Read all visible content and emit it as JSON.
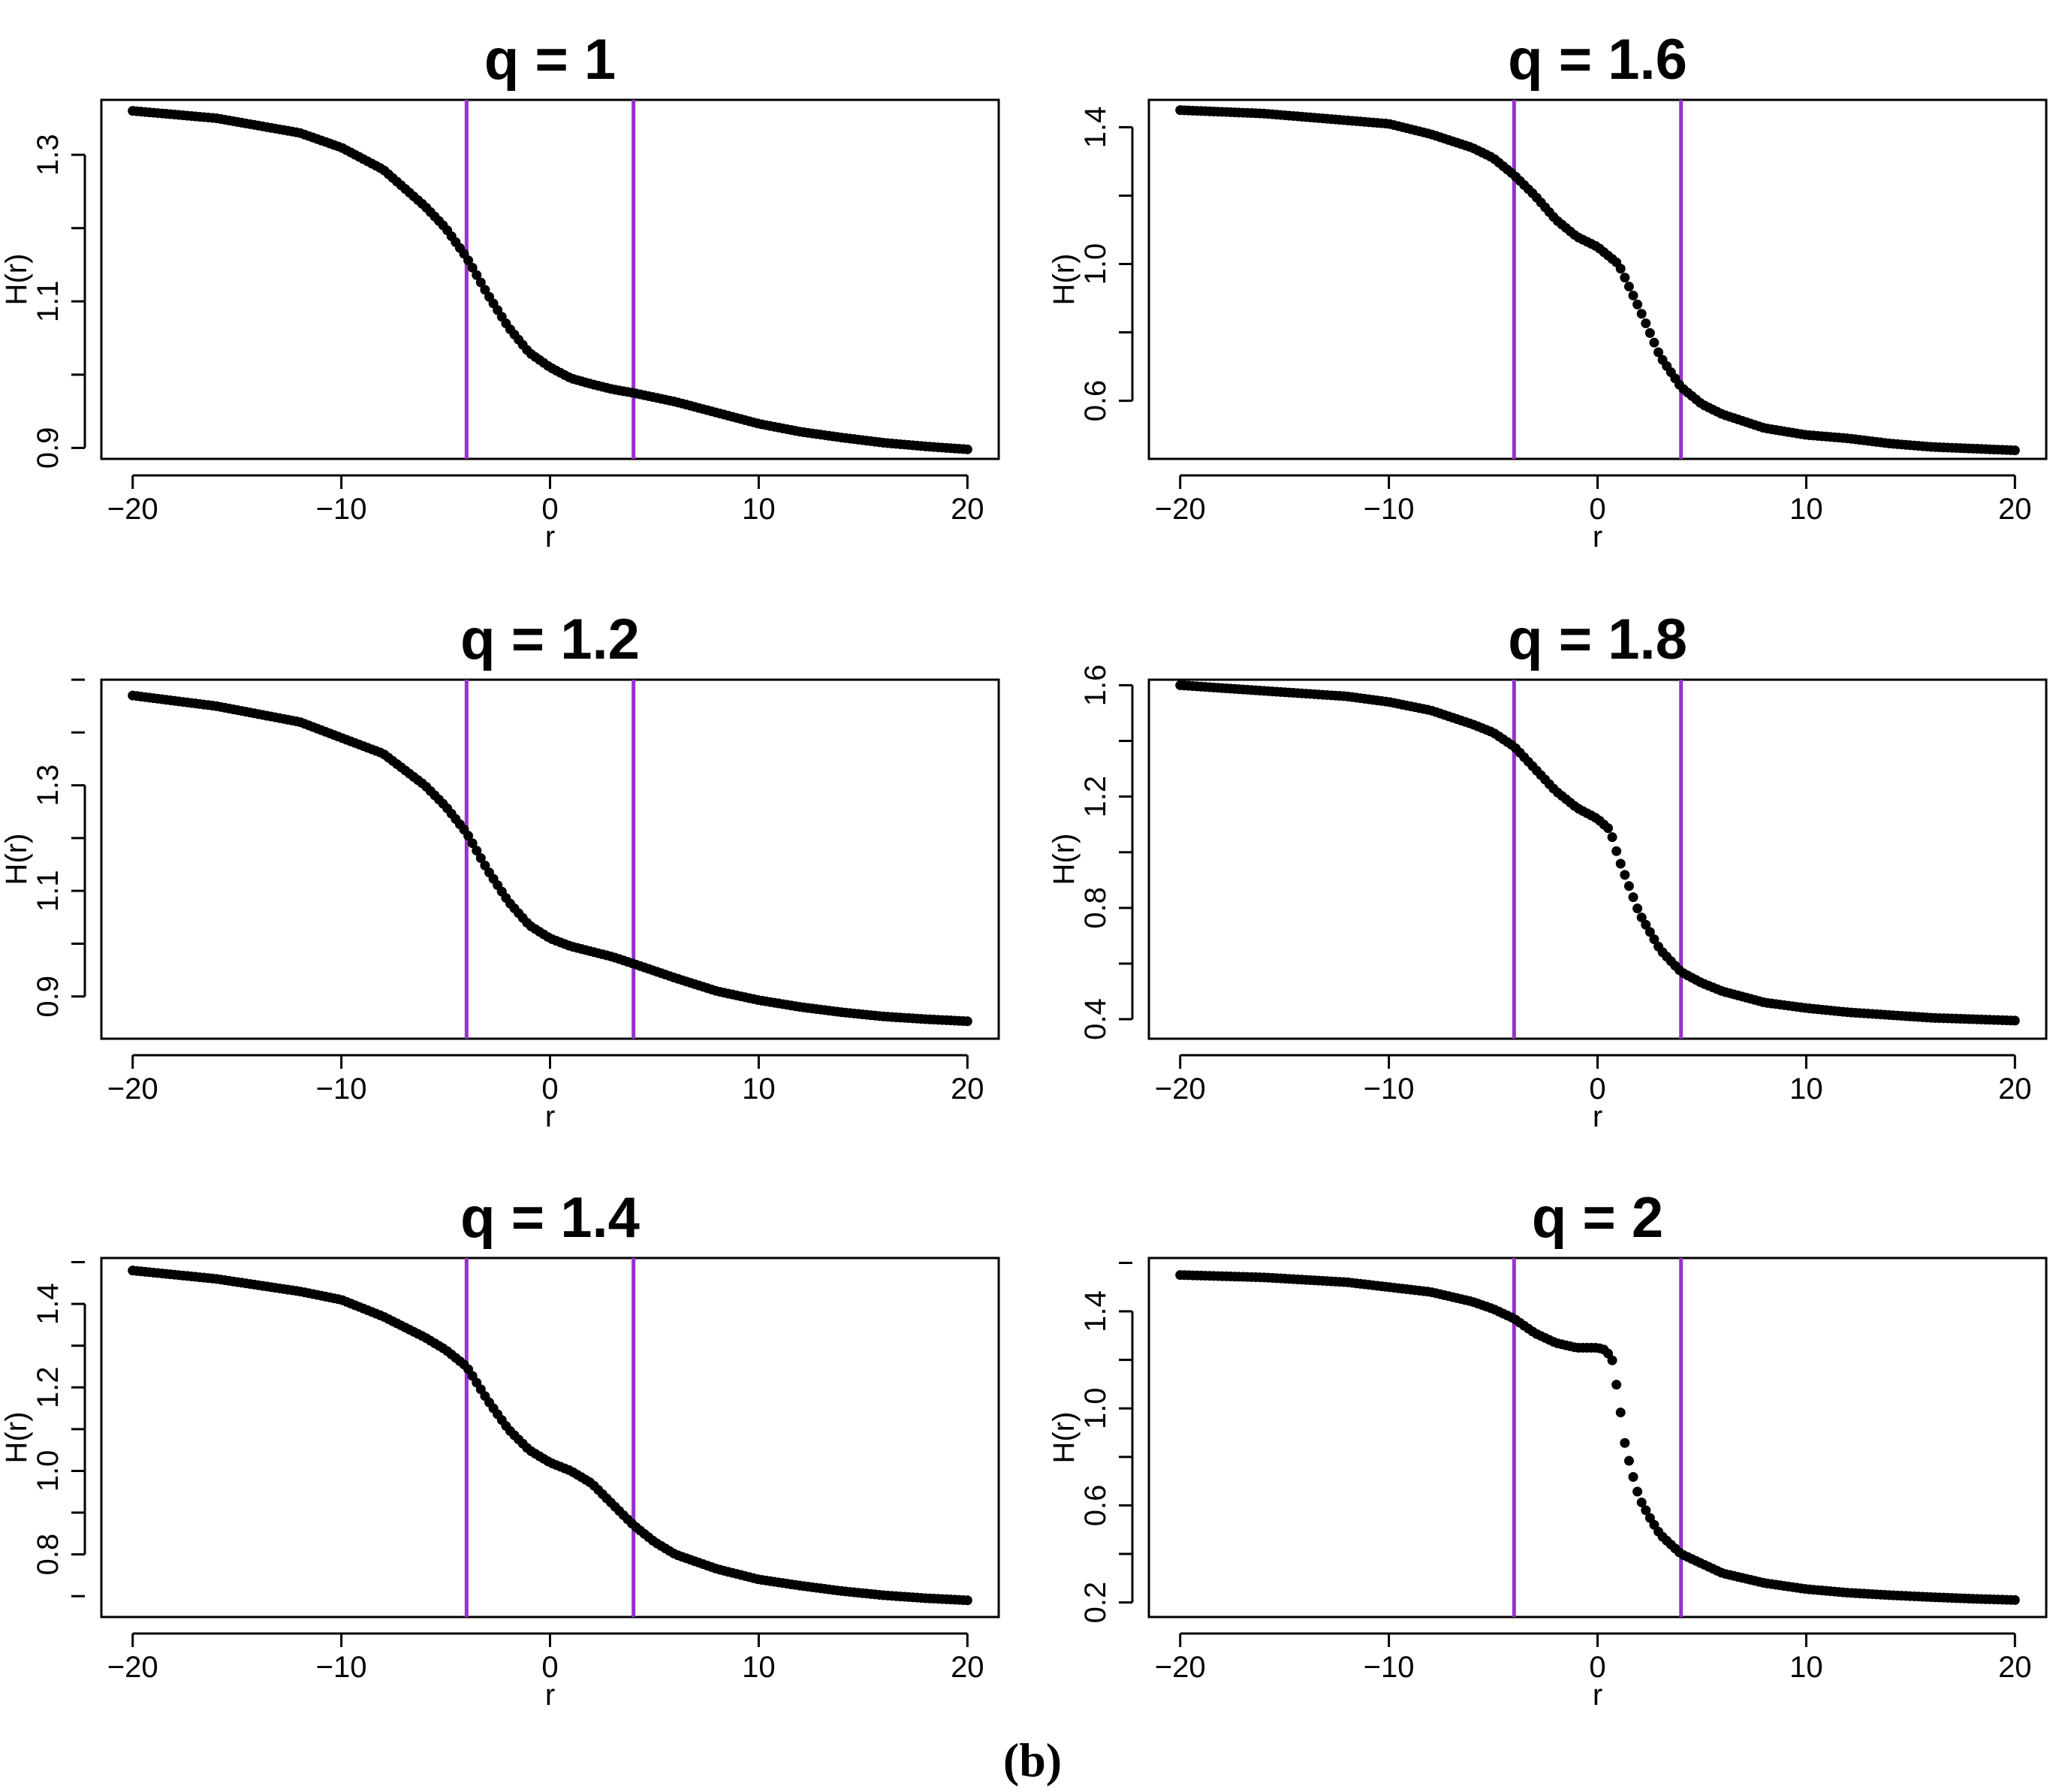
{
  "figure": {
    "caption": "(b)",
    "vline_color": "#9932CC",
    "point_color": "#000000"
  },
  "chart_data": [
    {
      "type": "scatter",
      "title": "q = 1",
      "xlabel": "r",
      "ylabel": "H(r)",
      "xlim": [
        -21.5,
        21.5
      ],
      "ylim": [
        0.885,
        1.375
      ],
      "xticks": [
        -20,
        -10,
        0,
        10,
        20
      ],
      "xtick_labels": [
        "−20",
        "−10",
        "0",
        "10",
        "20"
      ],
      "yticks": [
        0.9,
        1.1,
        1.3
      ],
      "ytick_labels": [
        "0.9",
        "1.1",
        "1.3"
      ],
      "vlines": [
        -4,
        4
      ],
      "points": [
        [
          -20,
          1.36
        ],
        [
          -16,
          1.35
        ],
        [
          -12,
          1.33
        ],
        [
          -10,
          1.31
        ],
        [
          -8,
          1.28
        ],
        [
          -6,
          1.23
        ],
        [
          -5,
          1.2
        ],
        [
          -4,
          1.16
        ],
        [
          -3,
          1.11
        ],
        [
          -2,
          1.065
        ],
        [
          -1,
          1.03
        ],
        [
          0,
          1.01
        ],
        [
          1,
          0.995
        ],
        [
          2,
          0.987
        ],
        [
          3,
          0.98
        ],
        [
          4,
          0.975
        ],
        [
          6,
          0.963
        ],
        [
          8,
          0.948
        ],
        [
          10,
          0.933
        ],
        [
          12,
          0.922
        ],
        [
          14,
          0.914
        ],
        [
          16,
          0.907
        ],
        [
          18,
          0.902
        ],
        [
          20,
          0.898
        ]
      ]
    },
    {
      "type": "scatter",
      "title": "q = 1.6",
      "xlabel": "r",
      "ylabel": "H(r)",
      "xlim": [
        -21.5,
        21.5
      ],
      "ylim": [
        0.43,
        1.48
      ],
      "xticks": [
        -20,
        -10,
        0,
        10,
        20
      ],
      "xtick_labels": [
        "−20",
        "−10",
        "0",
        "10",
        "20"
      ],
      "yticks": [
        0.6,
        1.0,
        1.4
      ],
      "ytick_labels": [
        "0.6",
        "1.0",
        "1.4"
      ],
      "vlines": [
        -4,
        4
      ],
      "points": [
        [
          -20,
          1.45
        ],
        [
          -16,
          1.44
        ],
        [
          -12,
          1.42
        ],
        [
          -10,
          1.41
        ],
        [
          -8,
          1.38
        ],
        [
          -6,
          1.34
        ],
        [
          -5,
          1.31
        ],
        [
          -4,
          1.26
        ],
        [
          -3,
          1.2
        ],
        [
          -2,
          1.13
        ],
        [
          -1,
          1.08
        ],
        [
          0,
          1.05
        ],
        [
          1,
          1.0
        ],
        [
          2,
          0.87
        ],
        [
          3,
          0.73
        ],
        [
          4,
          0.64
        ],
        [
          5,
          0.59
        ],
        [
          6,
          0.56
        ],
        [
          8,
          0.52
        ],
        [
          10,
          0.5
        ],
        [
          12,
          0.49
        ],
        [
          14,
          0.475
        ],
        [
          16,
          0.465
        ],
        [
          18,
          0.46
        ],
        [
          20,
          0.455
        ]
      ]
    },
    {
      "type": "scatter",
      "title": "q = 1.2",
      "xlabel": "r",
      "ylabel": "H(r)",
      "xlim": [
        -21.5,
        21.5
      ],
      "ylim": [
        0.82,
        1.5
      ],
      "xticks": [
        -20,
        -10,
        0,
        10,
        20
      ],
      "xtick_labels": [
        "−20",
        "−10",
        "0",
        "10",
        "20"
      ],
      "yticks": [
        0.9,
        1.1,
        1.3
      ],
      "ytick_labels": [
        "0.9",
        "1.1",
        "1.3"
      ],
      "vlines": [
        -4,
        4
      ],
      "points": [
        [
          -20,
          1.47
        ],
        [
          -16,
          1.45
        ],
        [
          -12,
          1.42
        ],
        [
          -10,
          1.39
        ],
        [
          -8,
          1.36
        ],
        [
          -6,
          1.3
        ],
        [
          -5,
          1.26
        ],
        [
          -4,
          1.21
        ],
        [
          -3,
          1.14
        ],
        [
          -2,
          1.08
        ],
        [
          -1,
          1.035
        ],
        [
          0,
          1.01
        ],
        [
          1,
          0.995
        ],
        [
          2,
          0.985
        ],
        [
          3,
          0.975
        ],
        [
          4,
          0.962
        ],
        [
          6,
          0.935
        ],
        [
          8,
          0.91
        ],
        [
          10,
          0.893
        ],
        [
          12,
          0.88
        ],
        [
          14,
          0.87
        ],
        [
          16,
          0.862
        ],
        [
          18,
          0.857
        ],
        [
          20,
          0.853
        ]
      ]
    },
    {
      "type": "scatter",
      "title": "q = 1.8",
      "xlabel": "r",
      "ylabel": "H(r)",
      "xlim": [
        -21.5,
        21.5
      ],
      "ylim": [
        0.33,
        1.62
      ],
      "xticks": [
        -20,
        -10,
        0,
        10,
        20
      ],
      "xtick_labels": [
        "−20",
        "−10",
        "0",
        "10",
        "20"
      ],
      "yticks": [
        0.4,
        0.8,
        1.2,
        1.6
      ],
      "ytick_labels": [
        "0.4",
        "0.8",
        "1.2",
        "1.6"
      ],
      "vlines": [
        -4,
        4
      ],
      "points": [
        [
          -20,
          1.6
        ],
        [
          -16,
          1.58
        ],
        [
          -12,
          1.56
        ],
        [
          -10,
          1.54
        ],
        [
          -8,
          1.51
        ],
        [
          -6,
          1.46
        ],
        [
          -5,
          1.43
        ],
        [
          -4,
          1.38
        ],
        [
          -3,
          1.3
        ],
        [
          -2,
          1.22
        ],
        [
          -1,
          1.16
        ],
        [
          0,
          1.12
        ],
        [
          0.6,
          1.08
        ],
        [
          1,
          0.98
        ],
        [
          2,
          0.78
        ],
        [
          3,
          0.65
        ],
        [
          4,
          0.57
        ],
        [
          5,
          0.53
        ],
        [
          6,
          0.5
        ],
        [
          8,
          0.46
        ],
        [
          10,
          0.44
        ],
        [
          12,
          0.425
        ],
        [
          14,
          0.415
        ],
        [
          16,
          0.405
        ],
        [
          18,
          0.4
        ],
        [
          20,
          0.395
        ]
      ]
    },
    {
      "type": "scatter",
      "title": "q = 1.4",
      "xlabel": "r",
      "ylabel": "H(r)",
      "xlim": [
        -21.5,
        21.5
      ],
      "ylim": [
        0.65,
        1.51
      ],
      "xticks": [
        -20,
        -10,
        0,
        10,
        20
      ],
      "xtick_labels": [
        "−20",
        "−10",
        "0",
        "10",
        "20"
      ],
      "yticks": [
        0.8,
        1.0,
        1.2,
        1.4
      ],
      "ytick_labels": [
        "0.8",
        "1.0",
        "1.2",
        "1.4"
      ],
      "vlines": [
        -4,
        4
      ],
      "points": [
        [
          -20,
          1.48
        ],
        [
          -16,
          1.46
        ],
        [
          -12,
          1.43
        ],
        [
          -10,
          1.41
        ],
        [
          -8,
          1.37
        ],
        [
          -6,
          1.32
        ],
        [
          -5,
          1.29
        ],
        [
          -4,
          1.25
        ],
        [
          -3,
          1.17
        ],
        [
          -2,
          1.1
        ],
        [
          -1,
          1.05
        ],
        [
          0,
          1.02
        ],
        [
          1,
          1.0
        ],
        [
          2,
          0.97
        ],
        [
          3,
          0.92
        ],
        [
          4,
          0.87
        ],
        [
          5,
          0.83
        ],
        [
          6,
          0.8
        ],
        [
          8,
          0.765
        ],
        [
          10,
          0.74
        ],
        [
          12,
          0.725
        ],
        [
          14,
          0.712
        ],
        [
          16,
          0.702
        ],
        [
          18,
          0.695
        ],
        [
          20,
          0.69
        ]
      ]
    },
    {
      "type": "scatter",
      "title": "q = 2",
      "xlabel": "r",
      "ylabel": "H(r)",
      "xlim": [
        -21.5,
        21.5
      ],
      "ylim": [
        0.14,
        1.62
      ],
      "xticks": [
        -20,
        -10,
        0,
        10,
        20
      ],
      "xtick_labels": [
        "−20",
        "−10",
        "0",
        "10",
        "20"
      ],
      "yticks": [
        0.2,
        0.6,
        1.0,
        1.4
      ],
      "ytick_labels": [
        "0.2",
        "0.6",
        "1.0",
        "1.4"
      ],
      "vlines": [
        -4,
        4
      ],
      "points": [
        [
          -20,
          1.55
        ],
        [
          -16,
          1.54
        ],
        [
          -12,
          1.52
        ],
        [
          -10,
          1.5
        ],
        [
          -8,
          1.48
        ],
        [
          -6,
          1.44
        ],
        [
          -5,
          1.41
        ],
        [
          -4,
          1.37
        ],
        [
          -3,
          1.31
        ],
        [
          -2,
          1.27
        ],
        [
          -1,
          1.25
        ],
        [
          0,
          1.25
        ],
        [
          0.4,
          1.24
        ],
        [
          0.7,
          1.2
        ],
        [
          1,
          1.05
        ],
        [
          1.3,
          0.86
        ],
        [
          1.6,
          0.75
        ],
        [
          2,
          0.63
        ],
        [
          2.5,
          0.55
        ],
        [
          3,
          0.48
        ],
        [
          4,
          0.4
        ],
        [
          5,
          0.36
        ],
        [
          6,
          0.32
        ],
        [
          8,
          0.28
        ],
        [
          10,
          0.255
        ],
        [
          12,
          0.24
        ],
        [
          14,
          0.23
        ],
        [
          16,
          0.222
        ],
        [
          18,
          0.215
        ],
        [
          20,
          0.21
        ]
      ]
    }
  ]
}
